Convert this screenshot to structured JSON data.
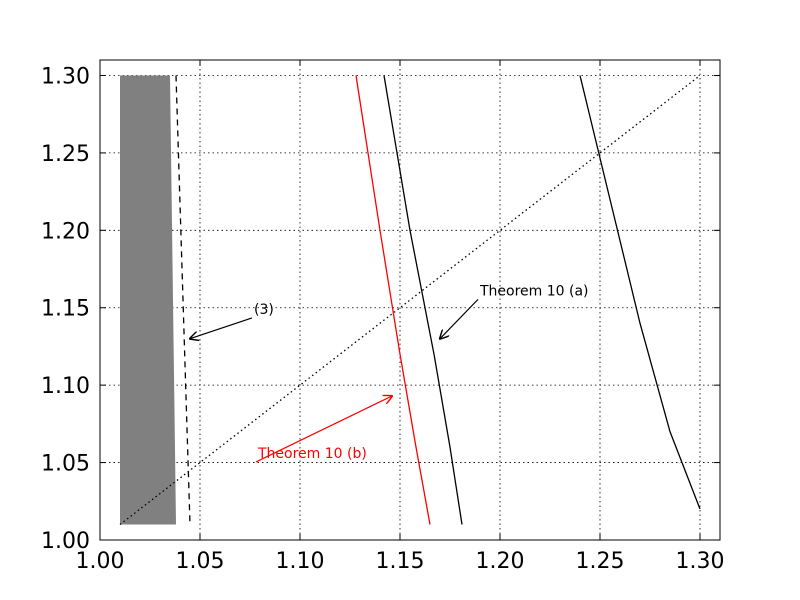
{
  "chart_data": {
    "type": "line",
    "title": "",
    "xlabel": "",
    "ylabel": "",
    "xlim": [
      1.0,
      1.31
    ],
    "ylim": [
      1.0,
      1.31
    ],
    "xticks": [
      "1.00",
      "1.05",
      "1.10",
      "1.15",
      "1.20",
      "1.25",
      "1.30"
    ],
    "yticks": [
      "1.00",
      "1.05",
      "1.10",
      "1.15",
      "1.20",
      "1.25",
      "1.30"
    ],
    "grid": true,
    "colors": {
      "axis": "#000000",
      "grid": "#000000",
      "region": "#808080",
      "red": "#ff0000",
      "black": "#000000"
    },
    "shaded_region": {
      "polygon": [
        [
          1.01,
          1.01
        ],
        [
          1.038,
          1.01
        ],
        [
          1.035,
          1.3
        ],
        [
          1.01,
          1.3
        ]
      ]
    },
    "series": [
      {
        "style": "dashed",
        "color": "#000000",
        "x": [
          1.038,
          1.045
        ],
        "y": [
          1.3,
          1.01
        ]
      },
      {
        "style": "solid",
        "color": "#ff0000",
        "x": [
          1.128,
          1.14,
          1.15,
          1.158,
          1.165
        ],
        "y": [
          1.3,
          1.2,
          1.12,
          1.06,
          1.01
        ]
      },
      {
        "style": "solid",
        "color": "#000000",
        "x": [
          1.142,
          1.155,
          1.167,
          1.175,
          1.181
        ],
        "y": [
          1.3,
          1.2,
          1.12,
          1.06,
          1.01
        ]
      },
      {
        "style": "solid",
        "color": "#000000",
        "x": [
          1.24,
          1.255,
          1.27,
          1.285,
          1.3
        ],
        "y": [
          1.3,
          1.22,
          1.14,
          1.07,
          1.02
        ]
      },
      {
        "style": "dotted",
        "color": "#000000",
        "x": [
          1.01,
          1.3
        ],
        "y": [
          1.01,
          1.3
        ]
      }
    ],
    "annotations": [
      {
        "text": "(3)",
        "color": "#000000",
        "text_x": 1.077,
        "text_y": 1.146,
        "arrow_to": [
          1.045,
          1.13
        ]
      },
      {
        "text": "Theorem 10 (a)",
        "color": "#000000",
        "text_x": 1.19,
        "text_y": 1.158,
        "arrow_to": [
          1.17,
          1.13
        ]
      },
      {
        "text": "Theorem 10 (b)",
        "color": "#ff0000",
        "text_x": 1.079,
        "text_y": 1.053,
        "arrow_to": [
          1.146,
          1.093
        ]
      }
    ]
  }
}
